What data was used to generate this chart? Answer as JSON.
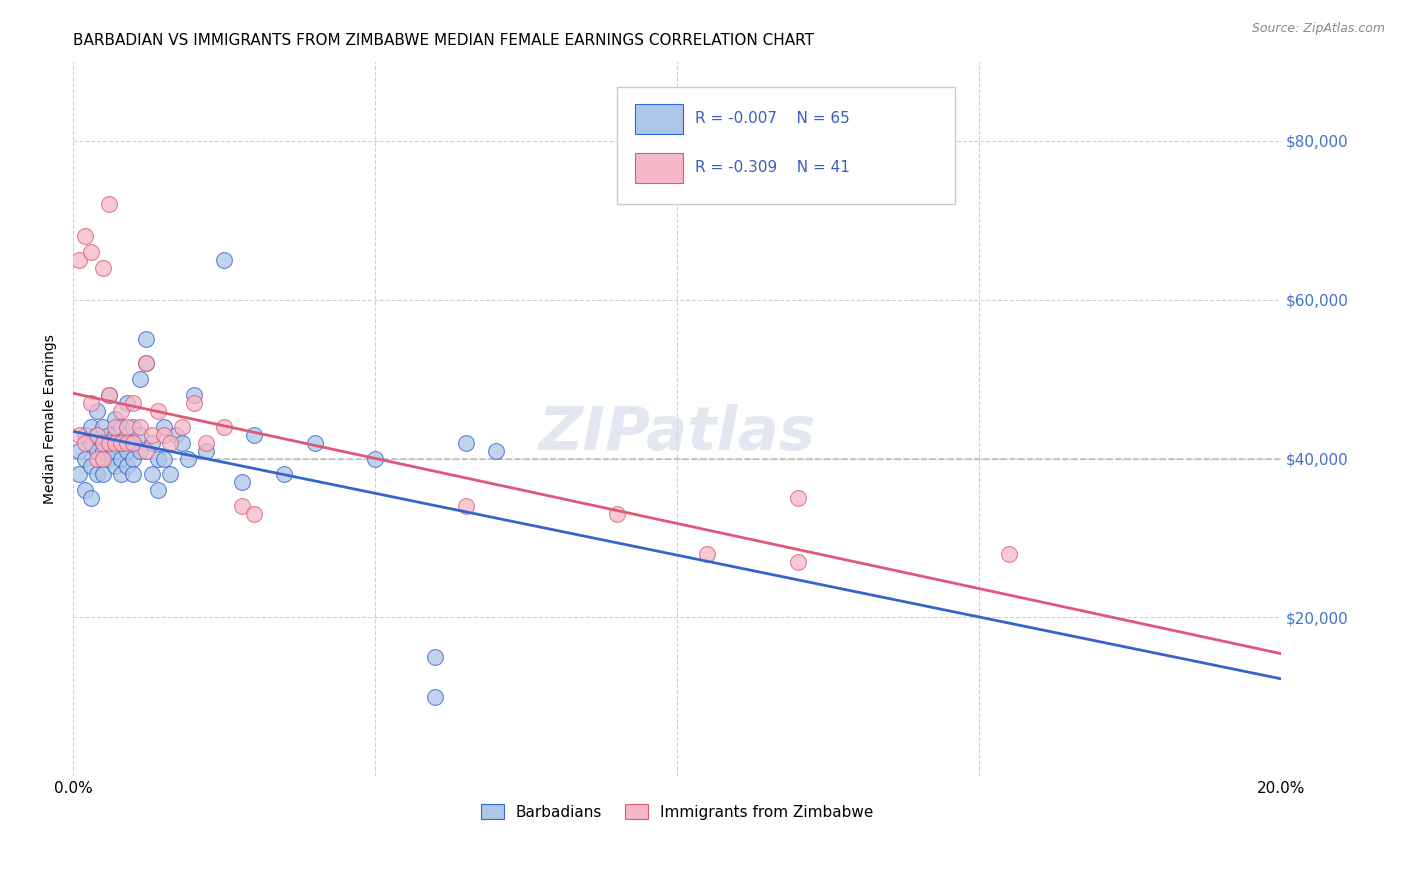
{
  "title": "BARBADIAN VS IMMIGRANTS FROM ZIMBABWE MEDIAN FEMALE EARNINGS CORRELATION CHART",
  "source": "Source: ZipAtlas.com",
  "xlabel_barbadian": "Barbadians",
  "xlabel_zimbabwe": "Immigrants from Zimbabwe",
  "ylabel": "Median Female Earnings",
  "legend_R_barbadian": "-0.007",
  "legend_N_barbadian": "65",
  "legend_R_zimbabwe": "-0.309",
  "legend_N_zimbabwe": "41",
  "color_barbadian": "#aec6e8",
  "color_zimbabwe": "#f4b8c8",
  "line_color_barbadian": "#3366cc",
  "line_color_zimbabwe": "#e05878",
  "line_color_dashed": "#b0b0b0",
  "xlim": [
    0,
    0.2
  ],
  "ylim": [
    0,
    90000
  ],
  "yticks": [
    20000,
    40000,
    60000,
    80000
  ],
  "ytick_labels": [
    "$20,000",
    "$40,000",
    "$60,000",
    "$80,000"
  ],
  "xticks": [
    0.0,
    0.05,
    0.1,
    0.15,
    0.2
  ],
  "xtick_labels": [
    "0.0%",
    "",
    "",
    "",
    "20.0%"
  ],
  "background_color": "#ffffff",
  "barbadian_x": [
    0.001,
    0.001,
    0.002,
    0.002,
    0.002,
    0.003,
    0.003,
    0.003,
    0.003,
    0.004,
    0.004,
    0.004,
    0.004,
    0.005,
    0.005,
    0.005,
    0.005,
    0.005,
    0.006,
    0.006,
    0.006,
    0.006,
    0.007,
    0.007,
    0.007,
    0.007,
    0.008,
    0.008,
    0.008,
    0.008,
    0.009,
    0.009,
    0.009,
    0.009,
    0.01,
    0.01,
    0.01,
    0.01,
    0.011,
    0.011,
    0.011,
    0.012,
    0.012,
    0.013,
    0.013,
    0.014,
    0.014,
    0.015,
    0.015,
    0.016,
    0.017,
    0.018,
    0.019,
    0.02,
    0.022,
    0.025,
    0.028,
    0.03,
    0.035,
    0.04,
    0.05,
    0.06,
    0.06,
    0.065,
    0.07
  ],
  "barbadian_y": [
    41000,
    38000,
    43000,
    40000,
    36000,
    42000,
    44000,
    39000,
    35000,
    41000,
    43000,
    38000,
    46000,
    42000,
    40000,
    38000,
    44000,
    41000,
    43000,
    40000,
    48000,
    42000,
    41000,
    39000,
    43000,
    45000,
    40000,
    42000,
    38000,
    44000,
    41000,
    39000,
    43000,
    47000,
    42000,
    40000,
    38000,
    44000,
    41000,
    50000,
    43000,
    52000,
    55000,
    42000,
    38000,
    36000,
    40000,
    44000,
    40000,
    38000,
    43000,
    42000,
    40000,
    48000,
    41000,
    65000,
    37000,
    43000,
    38000,
    42000,
    40000,
    10000,
    15000,
    42000,
    41000
  ],
  "zimbabwe_x": [
    0.001,
    0.001,
    0.002,
    0.002,
    0.003,
    0.003,
    0.004,
    0.004,
    0.005,
    0.005,
    0.005,
    0.006,
    0.006,
    0.006,
    0.007,
    0.007,
    0.008,
    0.008,
    0.009,
    0.009,
    0.01,
    0.01,
    0.011,
    0.012,
    0.012,
    0.013,
    0.014,
    0.015,
    0.016,
    0.018,
    0.02,
    0.022,
    0.025,
    0.028,
    0.03,
    0.065,
    0.09,
    0.105,
    0.12,
    0.12,
    0.155
  ],
  "zimbabwe_y": [
    65000,
    43000,
    68000,
    42000,
    47000,
    66000,
    40000,
    43000,
    64000,
    42000,
    40000,
    72000,
    42000,
    48000,
    42000,
    44000,
    42000,
    46000,
    42000,
    44000,
    42000,
    47000,
    44000,
    52000,
    41000,
    43000,
    46000,
    43000,
    42000,
    44000,
    47000,
    42000,
    44000,
    34000,
    33000,
    34000,
    33000,
    28000,
    27000,
    35000,
    28000
  ]
}
